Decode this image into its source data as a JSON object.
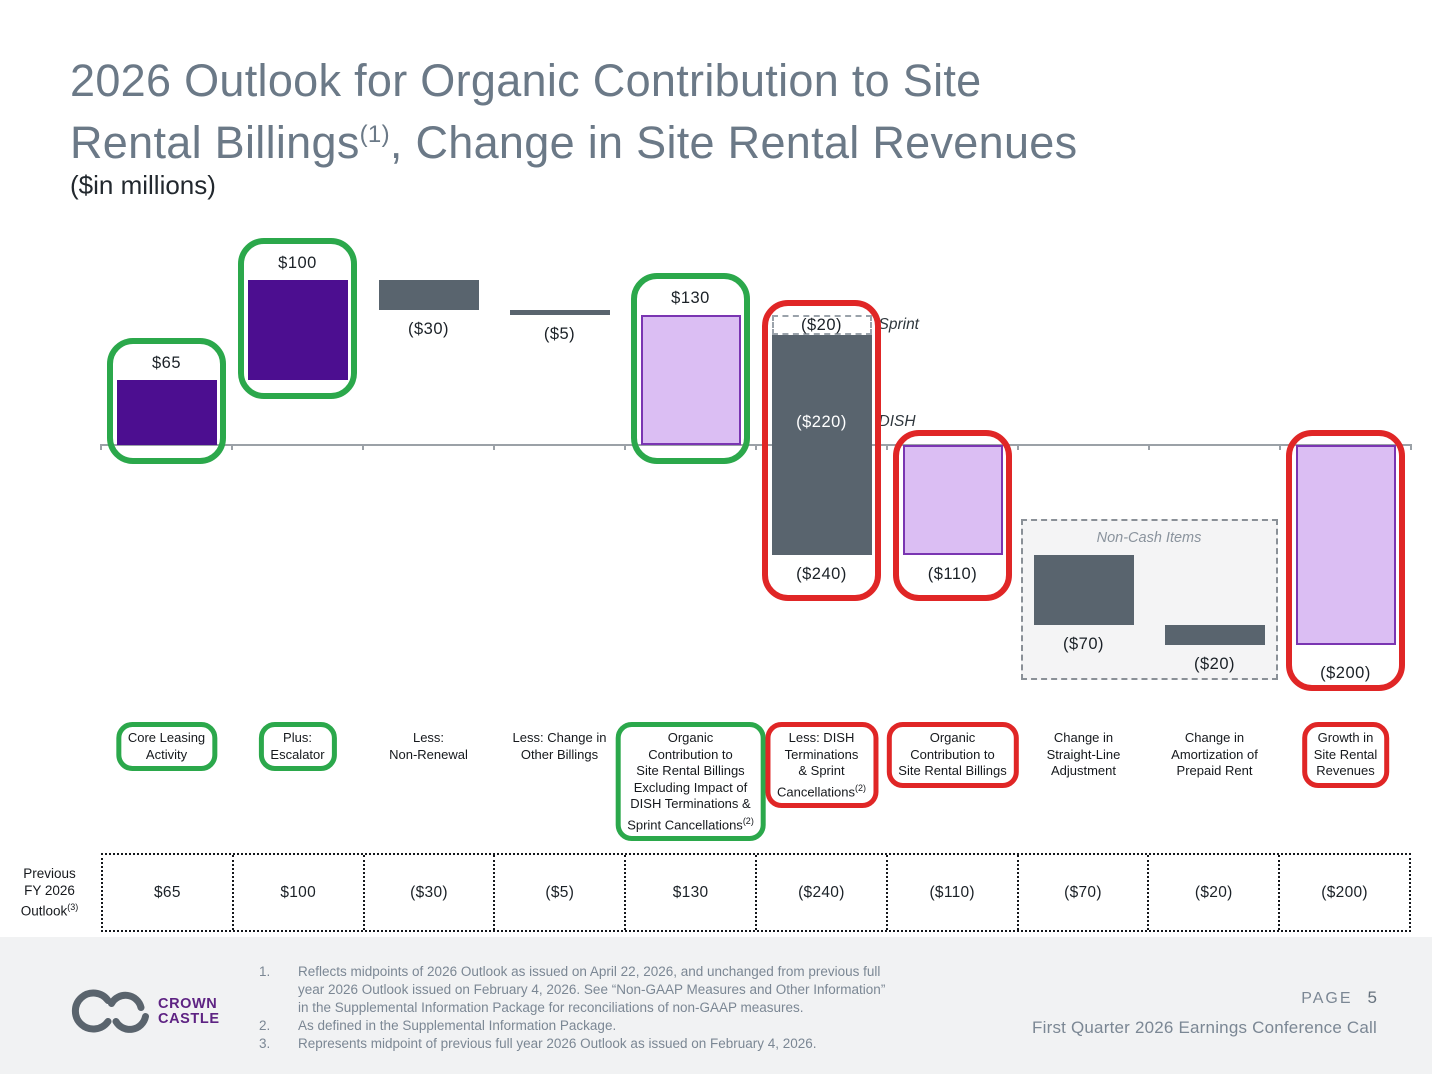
{
  "title": {
    "line1": "2026 Outlook for Organic Contribution to Site",
    "line2_pre": "Rental Billings",
    "line2_sup": "(1)",
    "line2_post": ", Change in Site Rental Revenues",
    "subtitle": "($in millions)"
  },
  "colors": {
    "dark_purple": "#4C0E90",
    "light_purple": "#DBBEF3",
    "light_purple_border": "#7A35B2",
    "gray_bar": "#59646E",
    "green_highlight": "#2BA84B",
    "red_highlight": "#E02626",
    "title_gray_blue": "#6B7987",
    "footer_gray": "#7B8794",
    "logo_purple": "#5E2383"
  },
  "chart_data": {
    "type": "bar",
    "subtype": "waterfall",
    "title": "2026 Outlook for Organic Contribution to Site Rental Billings, Change in Site Rental Revenues",
    "unit": "$ in millions",
    "ylabel": "",
    "xlabel": "",
    "baseline": 0,
    "columns": [
      {
        "category_lines": [
          "Core Leasing",
          "Activity"
        ],
        "value": 65,
        "display": "$65",
        "start": 0,
        "end": 65,
        "style": "dark-purple",
        "value_label_pos": "above",
        "highlight": "green",
        "category_highlight": "green"
      },
      {
        "category_lines": [
          "Plus:",
          "Escalator"
        ],
        "value": 100,
        "display": "$100",
        "start": 65,
        "end": 165,
        "style": "dark-purple",
        "value_label_pos": "above",
        "highlight": "green",
        "category_highlight": "green"
      },
      {
        "category_lines": [
          "Less:",
          "Non-Renewal"
        ],
        "value": -30,
        "display": "($30)",
        "start": 165,
        "end": 135,
        "style": "gray",
        "value_label_pos": "below"
      },
      {
        "category_lines": [
          "Less: Change in",
          "Other Billings"
        ],
        "value": -5,
        "display": "($5)",
        "start": 135,
        "end": 130,
        "style": "gray",
        "value_label_pos": "below"
      },
      {
        "category_lines": [
          "Organic",
          "Contribution to",
          "Site Rental Billings",
          "Excluding Impact of",
          "DISH Terminations &",
          "Sprint Cancellations"
        ],
        "category_sup": "(2)",
        "value": 130,
        "display": "$130",
        "start": 0,
        "end": 130,
        "style": "light-purple",
        "value_label_pos": "above",
        "highlight": "green",
        "category_highlight": "green"
      },
      {
        "category_lines": [
          "Less: DISH",
          "Terminations",
          "& Sprint",
          "Cancellations"
        ],
        "category_sup": "(2)",
        "value": -240,
        "display": "($240)",
        "start": 130,
        "end": -110,
        "style": "segmented",
        "value_label_pos": "below",
        "highlight": "red",
        "category_highlight": "red",
        "segments": [
          {
            "display": "($20)",
            "value": -20,
            "start": 130,
            "end": 110,
            "style": "white-dashed",
            "annotation": "Sprint"
          },
          {
            "display": "($220)",
            "value": -220,
            "start": 110,
            "end": -110,
            "style": "gray",
            "annotation": "DISH"
          }
        ]
      },
      {
        "category_lines": [
          "Organic",
          "Contribution to",
          "Site Rental Billings"
        ],
        "value": -110,
        "display": "($110)",
        "start": 0,
        "end": -110,
        "style": "light-purple",
        "value_label_pos": "below",
        "highlight": "red",
        "category_highlight": "red"
      },
      {
        "category_lines": [
          "Change in",
          "Straight-Line",
          "Adjustment"
        ],
        "value": -70,
        "display": "($70)",
        "start": -110,
        "end": -180,
        "style": "gray",
        "value_label_pos": "below"
      },
      {
        "category_lines": [
          "Change in",
          "Amortization of",
          "Prepaid Rent"
        ],
        "value": -20,
        "display": "($20)",
        "start": -180,
        "end": -200,
        "style": "gray",
        "value_label_pos": "below"
      },
      {
        "category_lines": [
          "Growth in",
          "Site Rental",
          "Revenues"
        ],
        "value": -200,
        "display": "($200)",
        "start": 0,
        "end": -200,
        "style": "light-purple",
        "value_label_pos": "below",
        "label_gap": 18,
        "highlight": "red",
        "category_highlight": "red"
      }
    ],
    "non_cash_box": {
      "label": "Non-Cash Items",
      "from_col": 7,
      "to_col": 8
    }
  },
  "table": {
    "row_label_lines": [
      "Previous",
      "FY 2026",
      "Outlook"
    ],
    "row_label_sup": "(3)",
    "values": [
      "$65",
      "$100",
      "($30)",
      "($5)",
      "$130",
      "($240)",
      "($110)",
      "($70)",
      "($20)",
      "($200)"
    ]
  },
  "footer": {
    "logo_line1": "CROWN",
    "logo_line2": "CASTLE",
    "footnotes": [
      {
        "num": "1.",
        "text": "Reflects midpoints of 2026 Outlook as issued on April 22, 2026, and unchanged from previous full year 2026 Outlook issued on February 4, 2026. See “Non-GAAP Measures and Other Information” in the Supplemental Information Package for reconciliations of non-GAAP measures."
      },
      {
        "num": "2.",
        "text": "As defined in the Supplemental Information Package."
      },
      {
        "num": "3.",
        "text": "Represents midpoint of previous full year 2026 Outlook as issued on February 4, 2026."
      }
    ],
    "page_label": "PAGE",
    "page_number": "5",
    "event_line": "First Quarter 2026 Earnings Conference Call"
  }
}
